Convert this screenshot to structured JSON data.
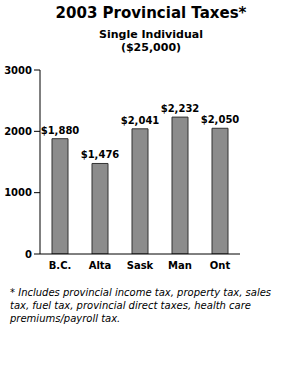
{
  "chart_data": {
    "type": "bar",
    "title": "2003 Provincial Taxes*",
    "subtitle": [
      "Single Individual",
      "($25,000)"
    ],
    "categories": [
      "B.C.",
      "Alta",
      "Sask",
      "Man",
      "Ont"
    ],
    "values": [
      1880,
      1476,
      2041,
      2232,
      2050
    ],
    "value_labels": [
      "$1,880",
      "$1,476",
      "$2,041",
      "$2,232",
      "$2,050"
    ],
    "data_labels": true,
    "color": "#8c8c8c",
    "ylim": [
      0,
      3000
    ],
    "yticks": [
      0,
      1000,
      2000,
      3000
    ],
    "grid": false,
    "annotations": [
      "* Includes provincial income tax, property tax, sales tax, fuel tax, provincial direct taxes, health care premiums/payroll tax."
    ]
  }
}
